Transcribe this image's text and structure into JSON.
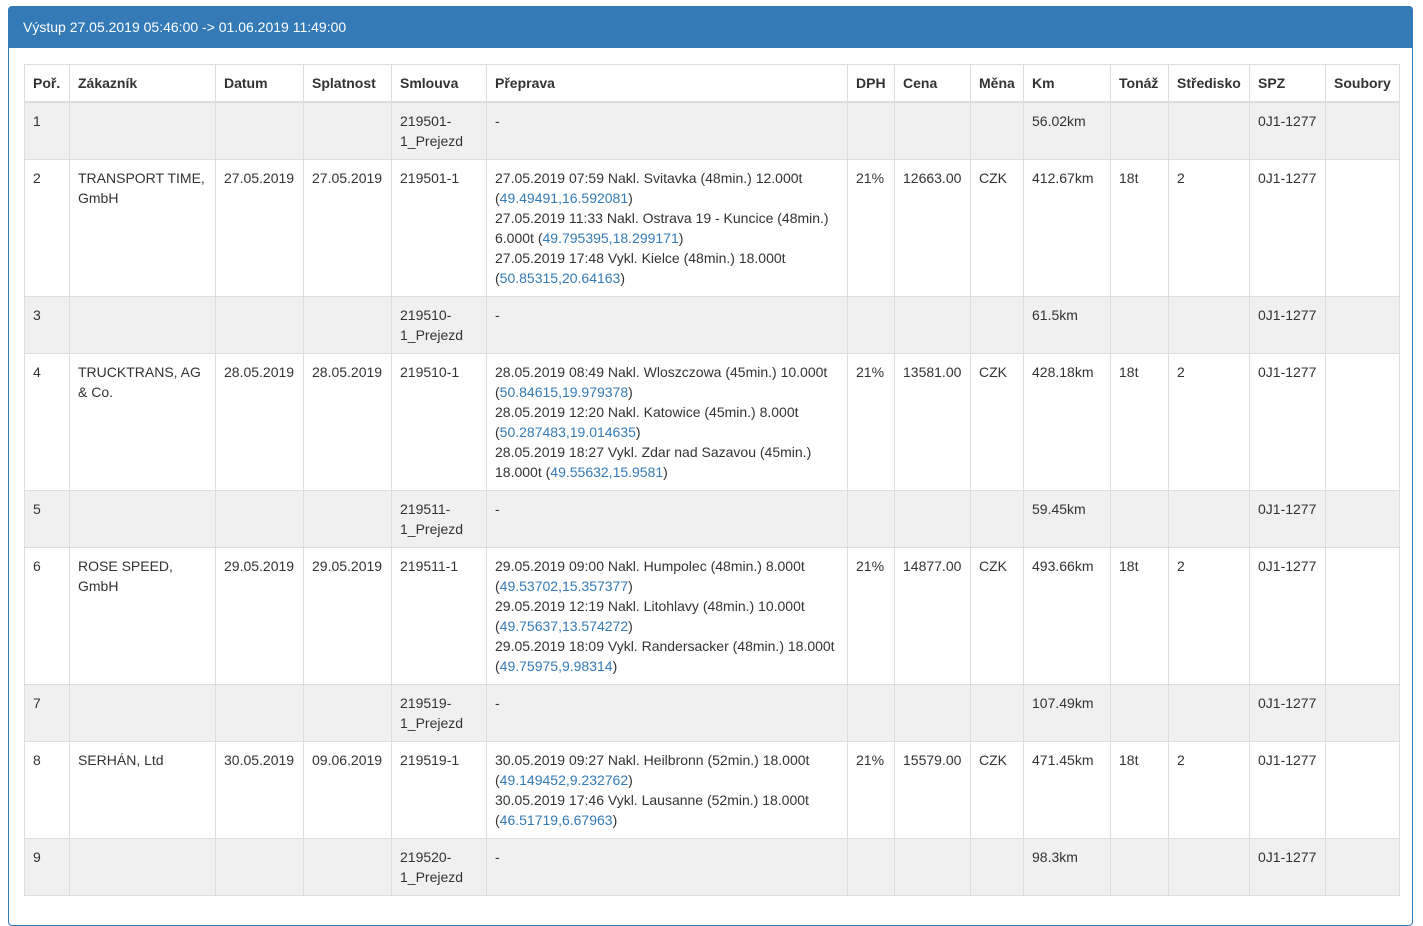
{
  "panel": {
    "title": "Výstup 27.05.2019 05:46:00 -> 01.06.2019 11:49:00"
  },
  "table": {
    "headers": [
      "Poř.",
      "Zákazník",
      "Datum",
      "Splatnost",
      "Smlouva",
      "Přeprava",
      "DPH",
      "Cena",
      "Měna",
      "Km",
      "Tonáž",
      "Středisko",
      "SPZ",
      "Soubory"
    ],
    "rows": [
      {
        "type": "transfer",
        "por": "1",
        "zakaznik": "",
        "datum": "",
        "splatnost": "",
        "smlouva": "219501-1_Prejezd",
        "preprava_text": "-",
        "stops": [],
        "dph": "",
        "cena": "",
        "mena": "",
        "km": "56.02km",
        "tonaz": "",
        "stredisko": "",
        "spz": "0J1-1277",
        "soubory": ""
      },
      {
        "type": "order",
        "por": "2",
        "zakaznik": "TRANSPORT TIME, GmbH",
        "datum": "27.05.2019",
        "splatnost": "27.05.2019",
        "smlouva": "219501-1",
        "preprava_text": "",
        "stops": [
          {
            "text": "27.05.2019 07:59 Nakl. Svitavka (48min.) 12.000t",
            "coord": "49.49491,16.592081"
          },
          {
            "text": "27.05.2019 11:33 Nakl. Ostrava 19 - Kuncice (48min.) 6.000t",
            "coord": "49.795395,18.299171"
          },
          {
            "text": "27.05.2019 17:48 Vykl. Kielce (48min.) 18.000t",
            "coord": "50.85315,20.64163"
          }
        ],
        "dph": "21%",
        "cena": "12663.00",
        "mena": "CZK",
        "km": "412.67km",
        "tonaz": "18t",
        "stredisko": "2",
        "spz": "0J1-1277",
        "soubory": ""
      },
      {
        "type": "transfer",
        "por": "3",
        "zakaznik": "",
        "datum": "",
        "splatnost": "",
        "smlouva": "219510-1_Prejezd",
        "preprava_text": "-",
        "stops": [],
        "dph": "",
        "cena": "",
        "mena": "",
        "km": "61.5km",
        "tonaz": "",
        "stredisko": "",
        "spz": "0J1-1277",
        "soubory": ""
      },
      {
        "type": "order",
        "por": "4",
        "zakaznik": "TRUCKTRANS, AG & Co.",
        "datum": "28.05.2019",
        "splatnost": "28.05.2019",
        "smlouva": "219510-1",
        "preprava_text": "",
        "stops": [
          {
            "text": "28.05.2019 08:49 Nakl. Wloszczowa (45min.) 10.000t",
            "coord": "50.84615,19.979378"
          },
          {
            "text": "28.05.2019 12:20 Nakl. Katowice (45min.) 8.000t",
            "coord": "50.287483,19.014635"
          },
          {
            "text": "28.05.2019 18:27 Vykl. Zdar nad Sazavou (45min.) 18.000t",
            "coord": "49.55632,15.9581"
          }
        ],
        "dph": "21%",
        "cena": "13581.00",
        "mena": "CZK",
        "km": "428.18km",
        "tonaz": "18t",
        "stredisko": "2",
        "spz": "0J1-1277",
        "soubory": ""
      },
      {
        "type": "transfer",
        "por": "5",
        "zakaznik": "",
        "datum": "",
        "splatnost": "",
        "smlouva": "219511-1_Prejezd",
        "preprava_text": "-",
        "stops": [],
        "dph": "",
        "cena": "",
        "mena": "",
        "km": "59.45km",
        "tonaz": "",
        "stredisko": "",
        "spz": "0J1-1277",
        "soubory": ""
      },
      {
        "type": "order",
        "por": "6",
        "zakaznik": "ROSE SPEED, GmbH",
        "datum": "29.05.2019",
        "splatnost": "29.05.2019",
        "smlouva": "219511-1",
        "preprava_text": "",
        "stops": [
          {
            "text": "29.05.2019 09:00 Nakl. Humpolec (48min.) 8.000t",
            "coord": "49.53702,15.357377"
          },
          {
            "text": "29.05.2019 12:19 Nakl. Litohlavy (48min.) 10.000t",
            "coord": "49.75637,13.574272"
          },
          {
            "text": "29.05.2019 18:09 Vykl. Randersacker (48min.) 18.000t",
            "coord": "49.75975,9.98314"
          }
        ],
        "dph": "21%",
        "cena": "14877.00",
        "mena": "CZK",
        "km": "493.66km",
        "tonaz": "18t",
        "stredisko": "2",
        "spz": "0J1-1277",
        "soubory": ""
      },
      {
        "type": "transfer",
        "por": "7",
        "zakaznik": "",
        "datum": "",
        "splatnost": "",
        "smlouva": "219519-1_Prejezd",
        "preprava_text": "-",
        "stops": [],
        "dph": "",
        "cena": "",
        "mena": "",
        "km": "107.49km",
        "tonaz": "",
        "stredisko": "",
        "spz": "0J1-1277",
        "soubory": ""
      },
      {
        "type": "order",
        "por": "8",
        "zakaznik": "SERHÁN, Ltd",
        "datum": "30.05.2019",
        "splatnost": "09.06.2019",
        "smlouva": "219519-1",
        "preprava_text": "",
        "stops": [
          {
            "text": "30.05.2019 09:27 Nakl. Heilbronn (52min.) 18.000t",
            "coord": "49.149452,9.232762"
          },
          {
            "text": "30.05.2019 17:46 Vykl. Lausanne (52min.) 18.000t",
            "coord": "46.51719,6.67963"
          }
        ],
        "dph": "21%",
        "cena": "15579.00",
        "mena": "CZK",
        "km": "471.45km",
        "tonaz": "18t",
        "stredisko": "2",
        "spz": "0J1-1277",
        "soubory": ""
      },
      {
        "type": "transfer",
        "por": "9",
        "zakaznik": "",
        "datum": "",
        "splatnost": "",
        "smlouva": "219520-1_Prejezd",
        "preprava_text": "-",
        "stops": [],
        "dph": "",
        "cena": "",
        "mena": "",
        "km": "98.3km",
        "tonaz": "",
        "stredisko": "",
        "spz": "0J1-1277",
        "soubory": ""
      }
    ]
  }
}
